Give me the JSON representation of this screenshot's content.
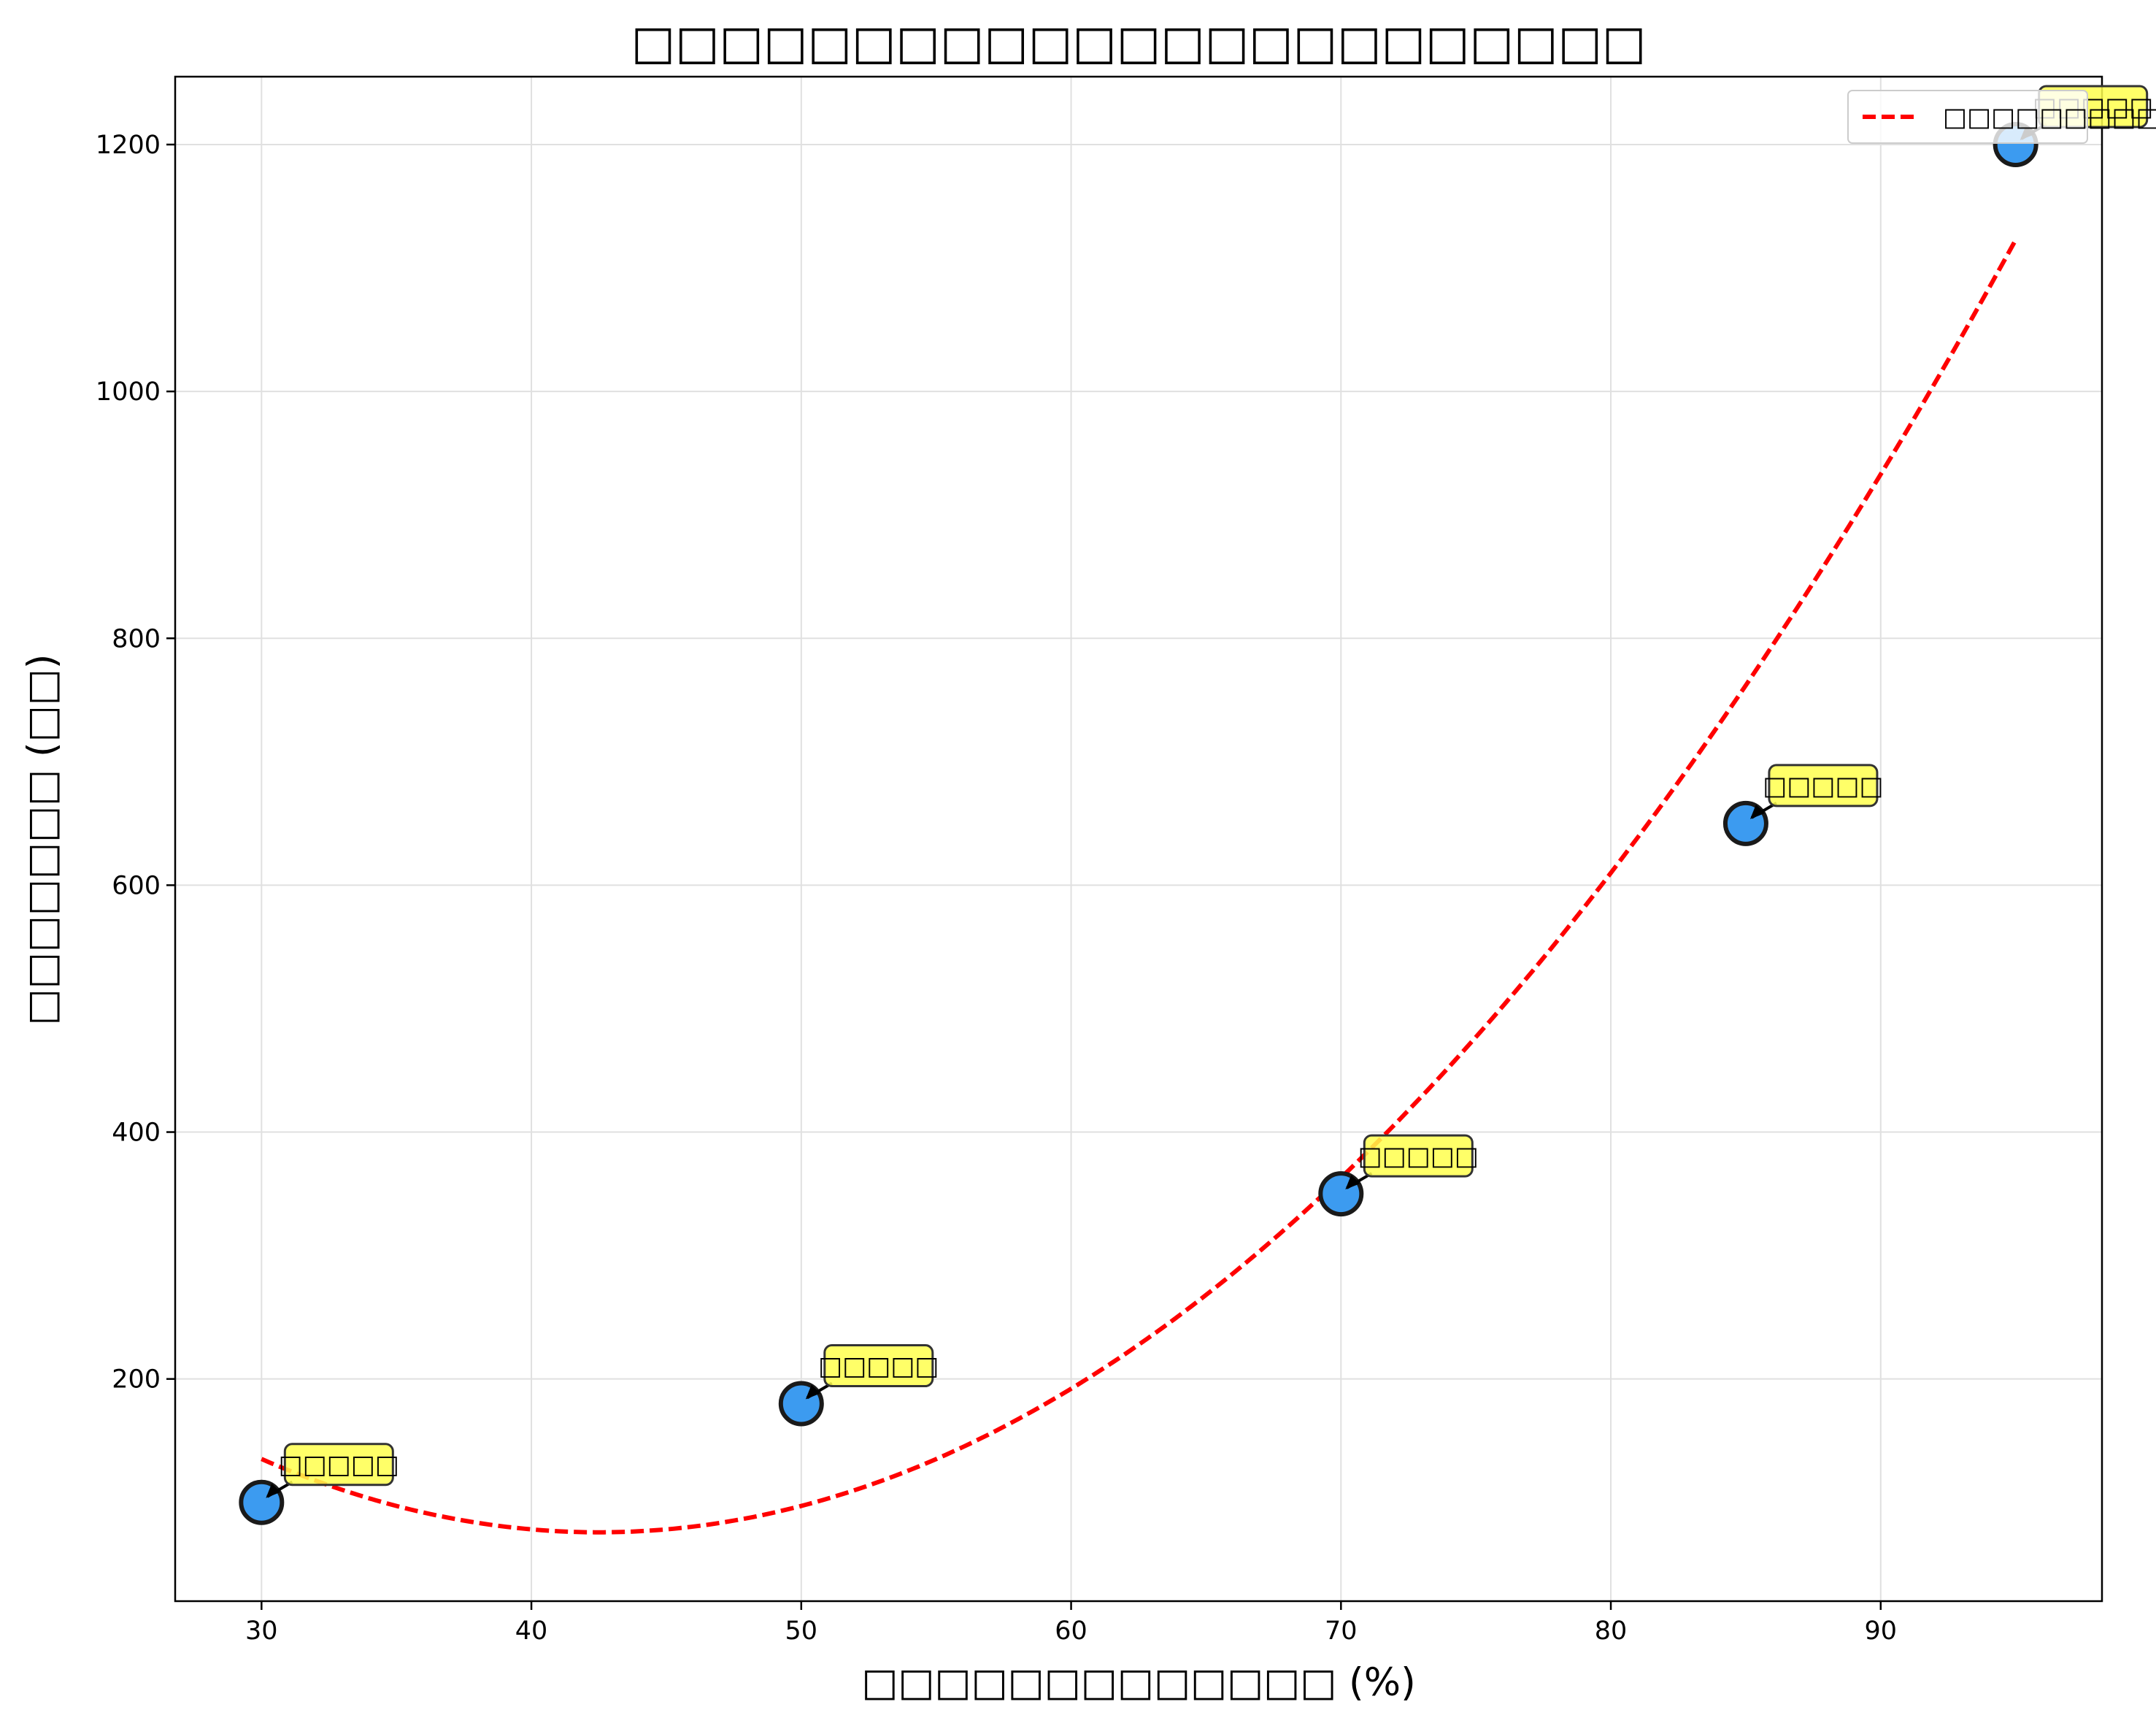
{
  "chart_data": {
    "type": "scatter",
    "title": "□□□□□□□□□□□□□□□□□□□□□□□",
    "xlabel": "□□□□□□□□□□□□□ (%)",
    "ylabel": "□□□□□□□ (□□)",
    "xlim": [
      26.8,
      98.2
    ],
    "ylim": [
      20,
      1255
    ],
    "xticks": [
      30,
      40,
      50,
      60,
      70,
      80,
      90
    ],
    "yticks": [
      200,
      400,
      600,
      800,
      1000,
      1200
    ],
    "grid": true,
    "legend_position": "top-right",
    "points": [
      {
        "x": 30,
        "y": 100,
        "label": "□□□□□"
      },
      {
        "x": 50,
        "y": 180,
        "label": "□□□□□"
      },
      {
        "x": 70,
        "y": 350,
        "label": "□□□□□"
      },
      {
        "x": 85,
        "y": 650,
        "label": "□□□□□"
      },
      {
        "x": 95,
        "y": 1200,
        "label": "□□□□□"
      }
    ],
    "series": [
      {
        "name": "□□□□□□□□□",
        "type": "line",
        "style": "dashed",
        "color": "#ff0000"
      }
    ],
    "colors": {
      "point_fill": "#3c9bf0",
      "point_edge": "#1a1a1a",
      "trend": "#ff0000",
      "annotation_bg": "#ffff4d",
      "grid": "#e0e0e0"
    }
  }
}
